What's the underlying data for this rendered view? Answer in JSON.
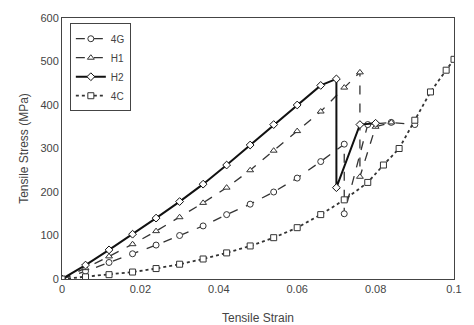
{
  "chart_data": {
    "type": "line",
    "xlabel": "Tensile Strain",
    "ylabel": "Tensile Stress (MPa)",
    "xlim": [
      0,
      0.1
    ],
    "ylim": [
      0,
      600
    ],
    "xticks": [
      0,
      0.02,
      0.04,
      0.06,
      0.08,
      0.1
    ],
    "yticks": [
      0,
      100,
      200,
      300,
      400,
      500,
      600
    ],
    "grid": false,
    "legend": "upper left",
    "series": [
      {
        "name": "4G",
        "color": "#333333",
        "marker": "circle",
        "line_style": "dashed",
        "x": [
          0,
          0.006,
          0.012,
          0.018,
          0.024,
          0.03,
          0.036,
          0.042,
          0.048,
          0.054,
          0.06,
          0.066,
          0.072,
          0.072,
          0.078,
          0.084,
          0.09
        ],
        "values": [
          0,
          18,
          38,
          58,
          78,
          100,
          122,
          148,
          172,
          200,
          232,
          270,
          310,
          150,
          355,
          360,
          355
        ]
      },
      {
        "name": "H1",
        "color": "#333333",
        "marker": "triangle",
        "line_style": "dashed",
        "x": [
          0,
          0.006,
          0.012,
          0.018,
          0.024,
          0.03,
          0.036,
          0.042,
          0.048,
          0.054,
          0.06,
          0.066,
          0.072,
          0.076,
          0.076,
          0.08,
          0.084
        ],
        "values": [
          0,
          25,
          52,
          80,
          110,
          142,
          175,
          210,
          250,
          295,
          340,
          385,
          440,
          475,
          235,
          350,
          360
        ]
      },
      {
        "name": "H2",
        "color": "#111111",
        "marker": "diamond",
        "line_style": "solid",
        "x": [
          0,
          0.006,
          0.012,
          0.018,
          0.024,
          0.03,
          0.036,
          0.042,
          0.048,
          0.054,
          0.06,
          0.066,
          0.07,
          0.07,
          0.076,
          0.08
        ],
        "values": [
          0,
          32,
          67,
          103,
          140,
          178,
          218,
          262,
          308,
          355,
          400,
          445,
          460,
          210,
          355,
          358
        ]
      },
      {
        "name": "4C",
        "color": "#333333",
        "marker": "square",
        "line_style": "dotted",
        "x": [
          0,
          0.006,
          0.012,
          0.018,
          0.024,
          0.03,
          0.036,
          0.042,
          0.048,
          0.054,
          0.06,
          0.066,
          0.072,
          0.078,
          0.082,
          0.086,
          0.09,
          0.094,
          0.098,
          0.1
        ],
        "values": [
          0,
          5,
          10,
          16,
          24,
          34,
          46,
          60,
          76,
          95,
          118,
          148,
          182,
          222,
          262,
          300,
          365,
          430,
          480,
          505
        ]
      }
    ]
  }
}
